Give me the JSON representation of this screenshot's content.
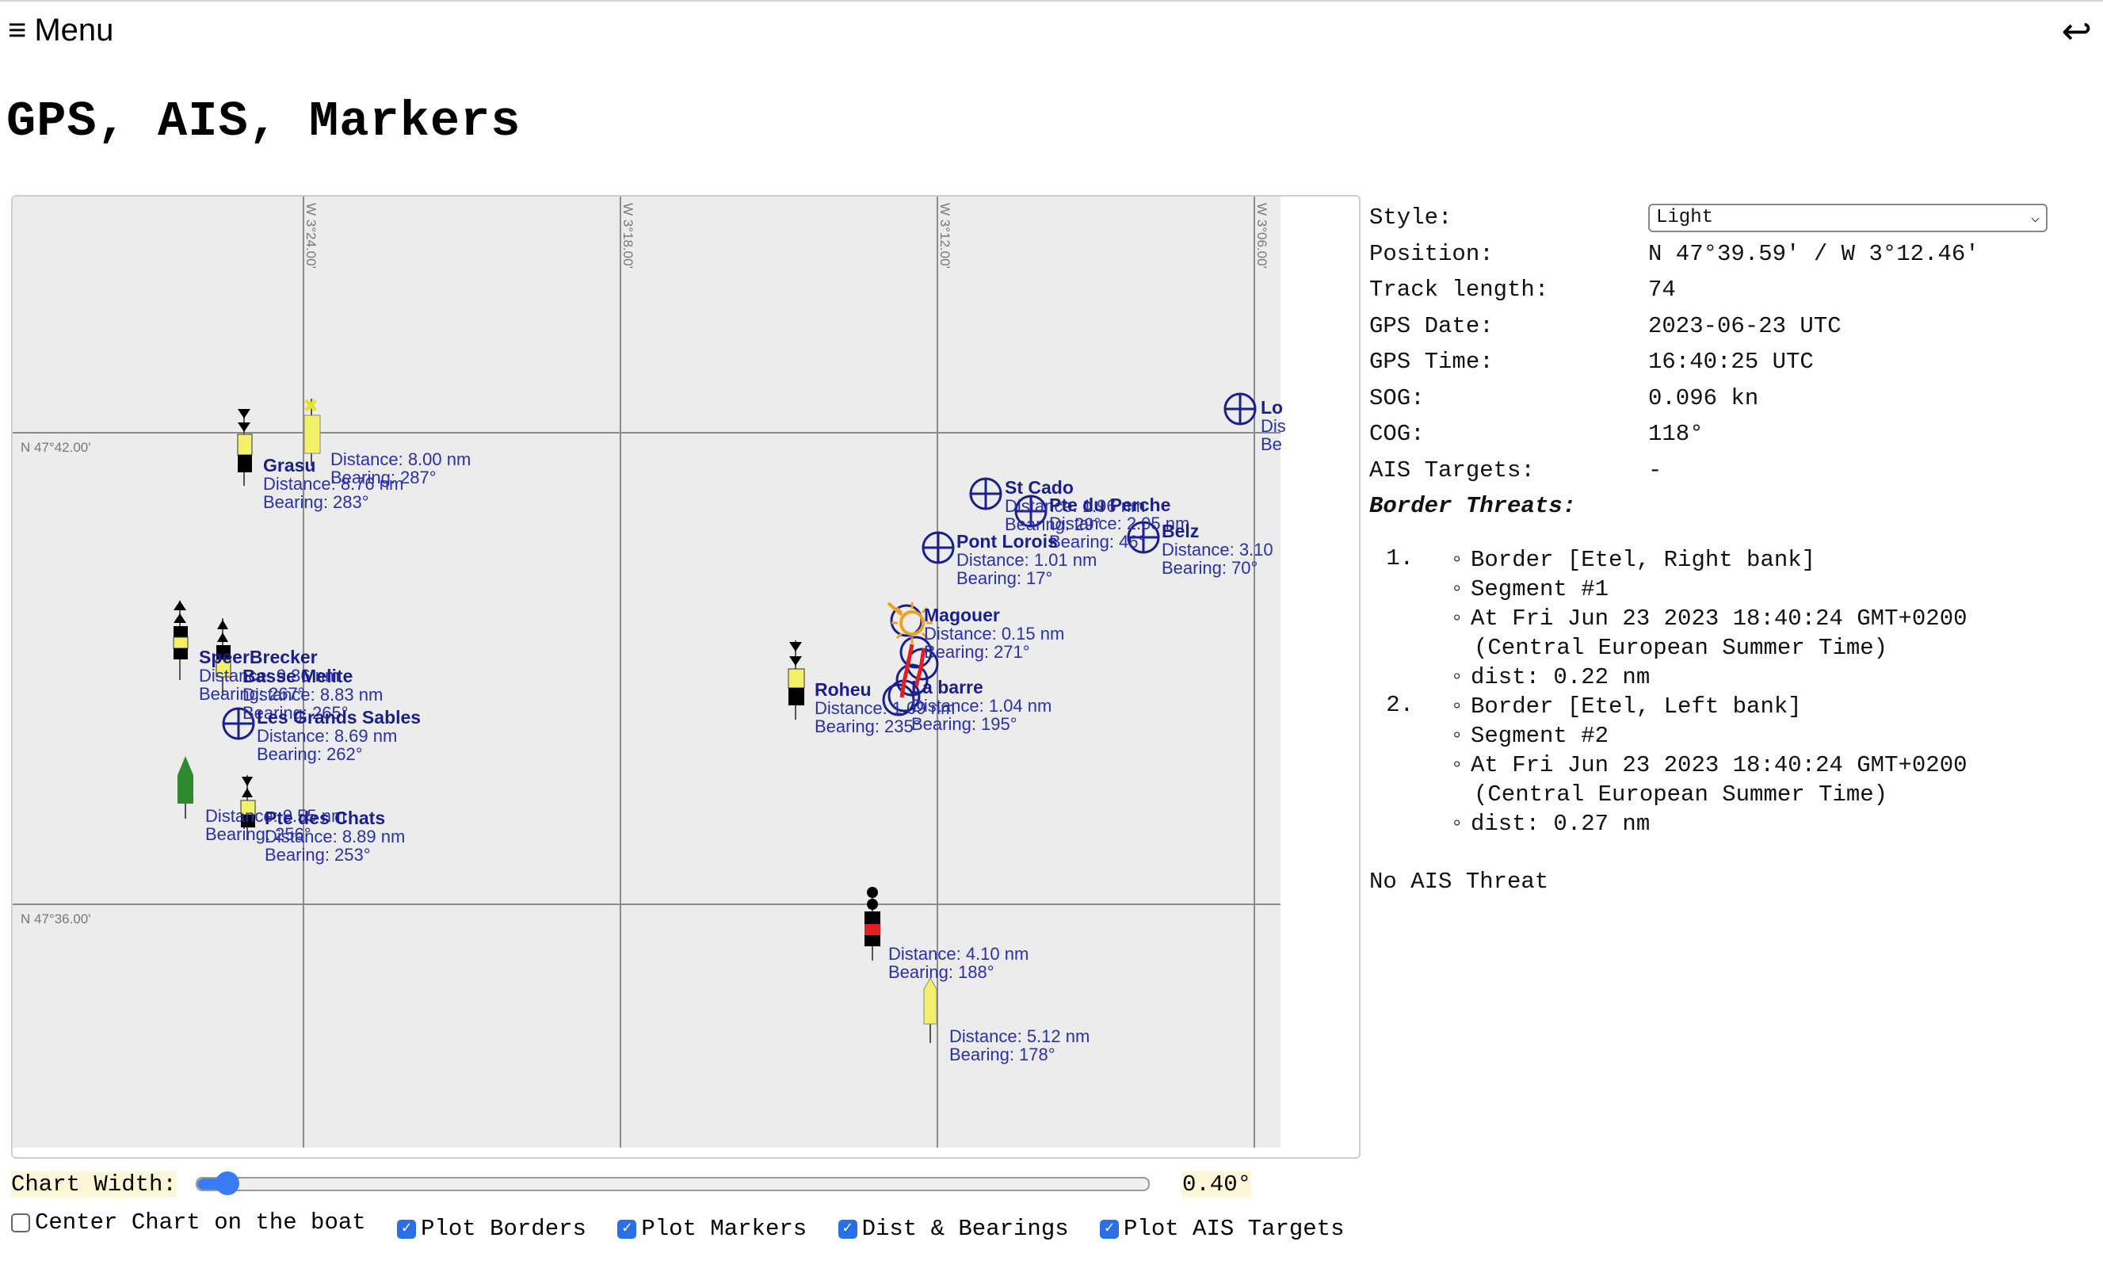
{
  "header": {
    "menu_icon": "☰",
    "menu_label": "Menu",
    "back_icon": "↩"
  },
  "page_title": "GPS, AIS, Markers",
  "chart": {
    "grid": {
      "longitudes": [
        "W 3°24.00'",
        "W 3°18.00'",
        "W 3°12.00'",
        "W 3°06.00'"
      ],
      "latitudes": [
        "N 47°42.00'",
        "N 47°36.00'"
      ]
    },
    "markers": {
      "grasu_name": "Grasu",
      "grasu_dist": "Distance: 8.76 nm",
      "grasu_bearing": "Bearing: 283°",
      "yellow1_dist": "Distance: 8.00 nm",
      "yellow1_bearing": "Bearing: 287°",
      "speerbrecker_name": "SpeerBrecker",
      "speerbrecker_dist": "Distance: 9.36 nm",
      "speerbrecker_bearing": "Bearing: 267°",
      "basse_name": "Basse Melite",
      "basse_dist": "Distance: 8.83 nm",
      "basse_bearing": "Bearing: 265°",
      "sables_name": "Les Grands Sables",
      "sables_dist": "Distance: 8.69 nm",
      "sables_bearing": "Bearing: 262°",
      "green_dist": "Distance: 9.55 nm",
      "green_bearing": "Bearing: 256°",
      "chats_name": "Pte des Chats",
      "chats_dist": "Distance: 8.89 nm",
      "chats_bearing": "Bearing: 253°",
      "stcado_name": "St Cado",
      "stcado_dist": "Distance: 1.96 nm",
      "stcado_bearing": "Bearing: 29°",
      "perche_name": "Pte du Perche",
      "perche_dist": "Distance: 2.05 nm",
      "perche_bearing": "Bearing: 46°",
      "belz_name": "Belz",
      "belz_dist": "Distance: 3.10",
      "belz_bearing": "Bearing: 70°",
      "pontlorois_name": "Pont Lorois",
      "pontlorois_dist": "Distance: 1.01 nm",
      "pontlorois_bearing": "Bearing: 17°",
      "magouer_name": "Magouer",
      "magouer_dist": "Distance: 0.15 nm",
      "magouer_bearing": "Bearing: 271°",
      "roheu_name": "Roheu",
      "roheu_dist": "Distance: 1.09 nm",
      "roheu_bearing": "Bearing: 235°",
      "labarre_name": "La barre",
      "labarre_dist": "Distance: 1.04 nm",
      "labarre_bearing": "Bearing: 195°",
      "redbuoy_dist": "Distance: 4.10 nm",
      "redbuoy_bearing": "Bearing: 188°",
      "yellow2_dist": "Distance: 5.12 nm",
      "yellow2_bearing": "Bearing: 178°",
      "lo_name": "Lo",
      "lo_dist": "Dis",
      "lo_bearing": "Be"
    },
    "colors": {
      "background": "#ececec",
      "grid": "#8a8a8a",
      "marker_blue": "#1a1f8c",
      "buoy_yellow": "#f4f06a",
      "buoy_green": "#2e8a2e",
      "buoy_red": "#e02020",
      "boat": "#f0a020"
    }
  },
  "info": {
    "style_label": "Style:",
    "style_value": "Light",
    "position_label": "Position:",
    "position_value": "N 47°39.59' / W 3°12.46'",
    "track_label": "Track length:",
    "track_value": "74",
    "gps_date_label": "GPS Date:",
    "gps_date_value": "2023-06-23 UTC",
    "gps_time_label": "GPS Time:",
    "gps_time_value": "16:40:25 UTC",
    "sog_label": "SOG:",
    "sog_value": "0.096 kn",
    "cog_label": "COG:",
    "cog_value": "118°",
    "ais_label": "AIS Targets:",
    "ais_value": "-",
    "border_threats_label": "Border Threats:",
    "threats": [
      {
        "num": "1.",
        "border": "Border [Etel, Right bank]",
        "segment": "Segment #1",
        "at": "At Fri Jun 23 2023 18:40:24 GMT+0200",
        "tz": "(Central European Summer Time)",
        "dist": "dist: 0.22 nm"
      },
      {
        "num": "2.",
        "border": "Border [Etel, Left bank]",
        "segment": "Segment #2",
        "at": "At Fri Jun 23 2023 18:40:24 GMT+0200",
        "tz": "(Central European Summer Time)",
        "dist": "dist: 0.27 nm"
      }
    ],
    "no_ais_threat": "No AIS Threat"
  },
  "controls": {
    "chart_width_label": "Chart Width:",
    "chart_width_value": "0.40°",
    "chart_width_fraction": 0.02,
    "center_label": "Center Chart on the boat",
    "center_checked": false,
    "borders_label": "Plot Borders",
    "borders_checked": true,
    "markers_label": "Plot Markers",
    "markers_checked": true,
    "dist_label": "Dist & Bearings",
    "dist_checked": true,
    "ais_label": "Plot AIS Targets",
    "ais_checked": true
  }
}
